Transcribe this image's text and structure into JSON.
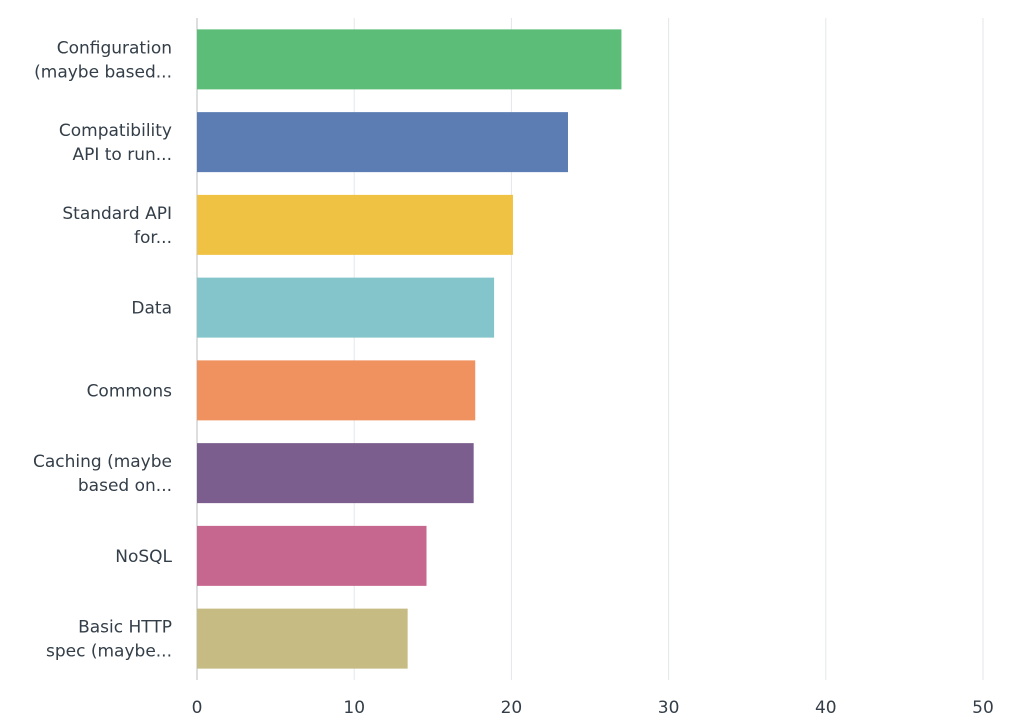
{
  "chart_data": {
    "type": "bar",
    "orientation": "horizontal",
    "categories": [
      [
        "Configuration",
        "(maybe based..."
      ],
      [
        "Compatibility",
        "API to run..."
      ],
      [
        "Standard API",
        "for..."
      ],
      [
        "Data"
      ],
      [
        "Commons"
      ],
      [
        "Caching (maybe",
        "based on..."
      ],
      [
        "NoSQL"
      ],
      [
        "Basic HTTP",
        "spec (maybe..."
      ]
    ],
    "values": [
      27.0,
      23.6,
      20.1,
      18.9,
      17.7,
      17.6,
      14.6,
      13.4
    ],
    "colors": [
      "#5bbd78",
      "#5b7db4",
      "#f0c243",
      "#83c5cb",
      "#f0925f",
      "#7b5e8d",
      "#c6678f",
      "#c5bb83"
    ],
    "xlim": [
      0,
      50
    ],
    "xticks": [
      "0",
      "10",
      "20",
      "30",
      "40",
      "50"
    ],
    "grid": true,
    "title": "",
    "xlabel": "",
    "ylabel": ""
  }
}
